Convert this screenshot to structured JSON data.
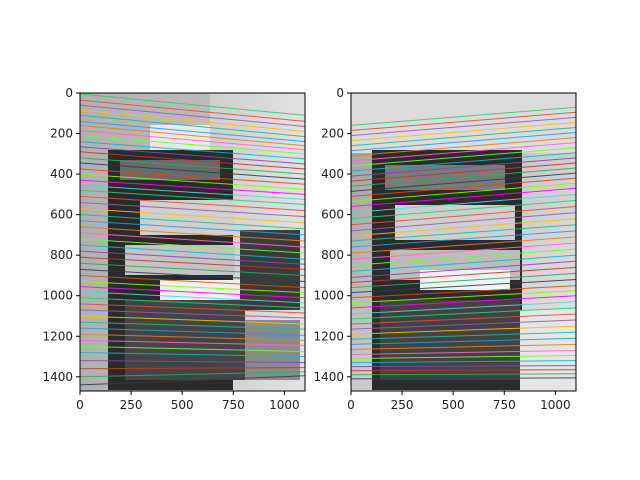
{
  "chart_data": [
    {
      "type": "image-with-epipolar-lines",
      "title": "",
      "xlabel": "",
      "ylabel": "",
      "xlim": [
        0,
        1101
      ],
      "ylim": [
        1470,
        0
      ],
      "xticks": [
        0,
        250,
        500,
        750,
        1000
      ],
      "yticks": [
        0,
        200,
        400,
        600,
        800,
        1000,
        1200,
        1400
      ],
      "xtick_labels": [
        "0",
        "250",
        "500",
        "750",
        "1000"
      ],
      "ytick_labels": [
        "0",
        "200",
        "400",
        "600",
        "800",
        "1000",
        "1200",
        "1400"
      ],
      "image": "grayscale photo of a black metal shelving unit holding papers and items in a room corner",
      "epipolar_lines": {
        "direction": "descending left-to-right",
        "count": 50,
        "y_at_x0": [
          5,
          35,
          60,
          85,
          110,
          140,
          160,
          185,
          210,
          240,
          265,
          290,
          320,
          345,
          375,
          400,
          430,
          455,
          480,
          510,
          540,
          570,
          600,
          630,
          660,
          690,
          720,
          750,
          780,
          810,
          840,
          870,
          900,
          930,
          955,
          980,
          1010,
          1040,
          1070,
          1100,
          1130,
          1160,
          1190,
          1220,
          1250,
          1280,
          1320,
          1360,
          1400,
          1440
        ],
        "y_at_xmax": [
          110,
          140,
          165,
          190,
          215,
          240,
          260,
          280,
          300,
          325,
          350,
          375,
          400,
          425,
          450,
          475,
          500,
          525,
          550,
          580,
          610,
          640,
          670,
          700,
          730,
          760,
          790,
          820,
          845,
          870,
          900,
          930,
          960,
          985,
          1010,
          1035,
          1060,
          1085,
          1110,
          1140,
          1165,
          1195,
          1220,
          1245,
          1275,
          1300,
          1330,
          1355,
          1375,
          1395
        ]
      }
    },
    {
      "type": "image-with-epipolar-lines",
      "title": "",
      "xlabel": "",
      "ylabel": "",
      "xlim": [
        0,
        1101
      ],
      "ylim": [
        1470,
        0
      ],
      "xticks": [
        0,
        250,
        500,
        750,
        1000
      ],
      "yticks": [
        0,
        200,
        400,
        600,
        800,
        1000,
        1200,
        1400
      ],
      "xtick_labels": [
        "0",
        "250",
        "500",
        "750",
        "1000"
      ],
      "ytick_labels": [
        "0",
        "200",
        "400",
        "600",
        "800",
        "1000",
        "1200",
        "1400"
      ],
      "image": "grayscale photo of the same shelving unit from a different viewpoint",
      "epipolar_lines": {
        "direction": "ascending left-to-right",
        "count": 50,
        "y_at_x0": [
          160,
          185,
          210,
          235,
          260,
          285,
          310,
          335,
          360,
          385,
          410,
          435,
          460,
          485,
          510,
          535,
          560,
          590,
          620,
          650,
          680,
          705,
          730,
          760,
          790,
          820,
          850,
          880,
          910,
          935,
          960,
          985,
          1010,
          1035,
          1060,
          1090,
          1115,
          1140,
          1165,
          1190,
          1215,
          1240,
          1265,
          1290,
          1310,
          1330,
          1350,
          1370,
          1390,
          1410
        ],
        "y_at_xmax": [
          70,
          95,
          120,
          145,
          170,
          195,
          220,
          245,
          270,
          295,
          320,
          345,
          370,
          395,
          420,
          445,
          470,
          500,
          530,
          560,
          590,
          620,
          650,
          680,
          710,
          740,
          770,
          800,
          830,
          860,
          890,
          920,
          950,
          975,
          1000,
          1030,
          1060,
          1090,
          1120,
          1150,
          1180,
          1210,
          1240,
          1270,
          1295,
          1320,
          1345,
          1365,
          1385,
          1405
        ]
      }
    }
  ],
  "line_colors": [
    "#2ecc71",
    "#e74c3c",
    "#9b59b6",
    "#f1c40f",
    "#1abc9c",
    "#3498db",
    "#e67e22",
    "#ff66cc",
    "#66ff33",
    "#00bcd4",
    "#8e44ad",
    "#c0392b",
    "#27ae60",
    "#2c3e50",
    "#d35400",
    "#7fff00",
    "#ff00ff",
    "#40e0d0"
  ]
}
